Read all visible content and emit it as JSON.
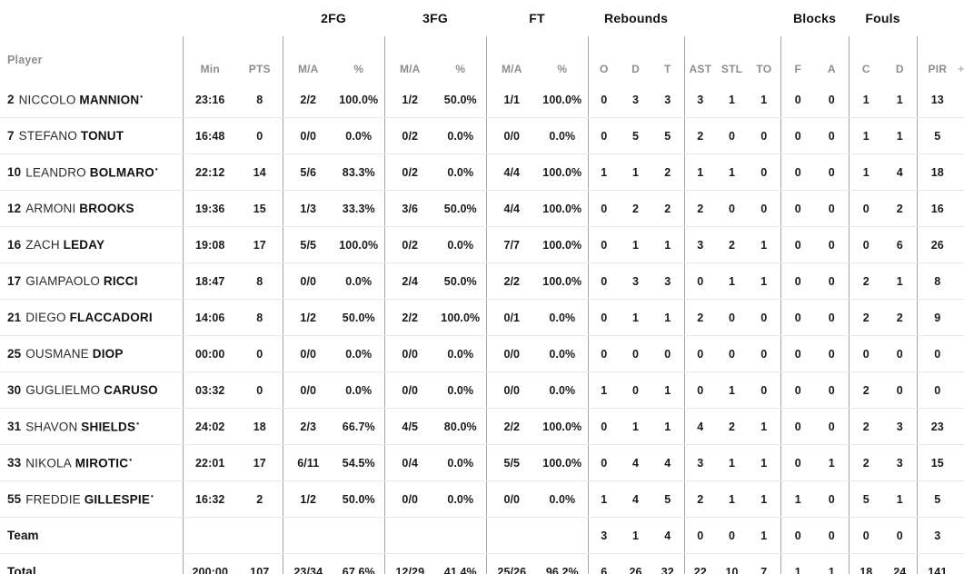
{
  "table": {
    "player_header": "Player",
    "group_headers": {
      "fg2": "2FG",
      "fg3": "3FG",
      "ft": "FT",
      "rebounds": "Rebounds",
      "blocks": "Blocks",
      "fouls": "Fouls"
    },
    "sub_headers": {
      "min": "Min",
      "pts": "PTS",
      "ma": "M/A",
      "pct": "%",
      "reb_o": "O",
      "reb_d": "D",
      "reb_t": "T",
      "ast": "AST",
      "stl": "STL",
      "to": "TO",
      "blk_f": "F",
      "blk_a": "A",
      "foul_c": "C",
      "foul_d": "D",
      "pir": "PIR",
      "plus": "+"
    },
    "starter_mark": "•",
    "rows": [
      {
        "num": "2",
        "first": "NICCOLO",
        "last": "MANNION",
        "starter": true,
        "min": "23:16",
        "pts": "8",
        "fg2_ma": "2/2",
        "fg2_pct": "100.0%",
        "fg3_ma": "1/2",
        "fg3_pct": "50.0%",
        "ft_ma": "1/1",
        "ft_pct": "100.0%",
        "reb_o": "0",
        "reb_d": "3",
        "reb_t": "3",
        "ast": "3",
        "stl": "1",
        "to": "1",
        "blk_f": "0",
        "blk_a": "0",
        "foul_c": "1",
        "foul_d": "1",
        "pir": "13"
      },
      {
        "num": "7",
        "first": "STEFANO",
        "last": "TONUT",
        "starter": false,
        "min": "16:48",
        "pts": "0",
        "fg2_ma": "0/0",
        "fg2_pct": "0.0%",
        "fg3_ma": "0/2",
        "fg3_pct": "0.0%",
        "ft_ma": "0/0",
        "ft_pct": "0.0%",
        "reb_o": "0",
        "reb_d": "5",
        "reb_t": "5",
        "ast": "2",
        "stl": "0",
        "to": "0",
        "blk_f": "0",
        "blk_a": "0",
        "foul_c": "1",
        "foul_d": "1",
        "pir": "5"
      },
      {
        "num": "10",
        "first": "LEANDRO",
        "last": "BOLMARO",
        "starter": true,
        "min": "22:12",
        "pts": "14",
        "fg2_ma": "5/6",
        "fg2_pct": "83.3%",
        "fg3_ma": "0/2",
        "fg3_pct": "0.0%",
        "ft_ma": "4/4",
        "ft_pct": "100.0%",
        "reb_o": "1",
        "reb_d": "1",
        "reb_t": "2",
        "ast": "1",
        "stl": "1",
        "to": "0",
        "blk_f": "0",
        "blk_a": "0",
        "foul_c": "1",
        "foul_d": "4",
        "pir": "18"
      },
      {
        "num": "12",
        "first": "ARMONI",
        "last": "BROOKS",
        "starter": false,
        "min": "19:36",
        "pts": "15",
        "fg2_ma": "1/3",
        "fg2_pct": "33.3%",
        "fg3_ma": "3/6",
        "fg3_pct": "50.0%",
        "ft_ma": "4/4",
        "ft_pct": "100.0%",
        "reb_o": "0",
        "reb_d": "2",
        "reb_t": "2",
        "ast": "2",
        "stl": "0",
        "to": "0",
        "blk_f": "0",
        "blk_a": "0",
        "foul_c": "0",
        "foul_d": "2",
        "pir": "16"
      },
      {
        "num": "16",
        "first": "ZACH",
        "last": "LEDAY",
        "starter": false,
        "min": "19:08",
        "pts": "17",
        "fg2_ma": "5/5",
        "fg2_pct": "100.0%",
        "fg3_ma": "0/2",
        "fg3_pct": "0.0%",
        "ft_ma": "7/7",
        "ft_pct": "100.0%",
        "reb_o": "0",
        "reb_d": "1",
        "reb_t": "1",
        "ast": "3",
        "stl": "2",
        "to": "1",
        "blk_f": "0",
        "blk_a": "0",
        "foul_c": "0",
        "foul_d": "6",
        "pir": "26"
      },
      {
        "num": "17",
        "first": "GIAMPAOLO",
        "last": "RICCI",
        "starter": false,
        "min": "18:47",
        "pts": "8",
        "fg2_ma": "0/0",
        "fg2_pct": "0.0%",
        "fg3_ma": "2/4",
        "fg3_pct": "50.0%",
        "ft_ma": "2/2",
        "ft_pct": "100.0%",
        "reb_o": "0",
        "reb_d": "3",
        "reb_t": "3",
        "ast": "0",
        "stl": "1",
        "to": "1",
        "blk_f": "0",
        "blk_a": "0",
        "foul_c": "2",
        "foul_d": "1",
        "pir": "8"
      },
      {
        "num": "21",
        "first": "DIEGO",
        "last": "FLACCADORI",
        "starter": false,
        "min": "14:06",
        "pts": "8",
        "fg2_ma": "1/2",
        "fg2_pct": "50.0%",
        "fg3_ma": "2/2",
        "fg3_pct": "100.0%",
        "ft_ma": "0/1",
        "ft_pct": "0.0%",
        "reb_o": "0",
        "reb_d": "1",
        "reb_t": "1",
        "ast": "2",
        "stl": "0",
        "to": "0",
        "blk_f": "0",
        "blk_a": "0",
        "foul_c": "2",
        "foul_d": "2",
        "pir": "9"
      },
      {
        "num": "25",
        "first": "OUSMANE",
        "last": "DIOP",
        "starter": false,
        "min": "00:00",
        "pts": "0",
        "fg2_ma": "0/0",
        "fg2_pct": "0.0%",
        "fg3_ma": "0/0",
        "fg3_pct": "0.0%",
        "ft_ma": "0/0",
        "ft_pct": "0.0%",
        "reb_o": "0",
        "reb_d": "0",
        "reb_t": "0",
        "ast": "0",
        "stl": "0",
        "to": "0",
        "blk_f": "0",
        "blk_a": "0",
        "foul_c": "0",
        "foul_d": "0",
        "pir": "0"
      },
      {
        "num": "30",
        "first": "GUGLIELMO",
        "last": "CARUSO",
        "starter": false,
        "min": "03:32",
        "pts": "0",
        "fg2_ma": "0/0",
        "fg2_pct": "0.0%",
        "fg3_ma": "0/0",
        "fg3_pct": "0.0%",
        "ft_ma": "0/0",
        "ft_pct": "0.0%",
        "reb_o": "1",
        "reb_d": "0",
        "reb_t": "1",
        "ast": "0",
        "stl": "1",
        "to": "0",
        "blk_f": "0",
        "blk_a": "0",
        "foul_c": "2",
        "foul_d": "0",
        "pir": "0"
      },
      {
        "num": "31",
        "first": "SHAVON",
        "last": "SHIELDS",
        "starter": true,
        "min": "24:02",
        "pts": "18",
        "fg2_ma": "2/3",
        "fg2_pct": "66.7%",
        "fg3_ma": "4/5",
        "fg3_pct": "80.0%",
        "ft_ma": "2/2",
        "ft_pct": "100.0%",
        "reb_o": "0",
        "reb_d": "1",
        "reb_t": "1",
        "ast": "4",
        "stl": "2",
        "to": "1",
        "blk_f": "0",
        "blk_a": "0",
        "foul_c": "2",
        "foul_d": "3",
        "pir": "23"
      },
      {
        "num": "33",
        "first": "NIKOLA",
        "last": "MIROTIC",
        "starter": true,
        "min": "22:01",
        "pts": "17",
        "fg2_ma": "6/11",
        "fg2_pct": "54.5%",
        "fg3_ma": "0/4",
        "fg3_pct": "0.0%",
        "ft_ma": "5/5",
        "ft_pct": "100.0%",
        "reb_o": "0",
        "reb_d": "4",
        "reb_t": "4",
        "ast": "3",
        "stl": "1",
        "to": "1",
        "blk_f": "0",
        "blk_a": "1",
        "foul_c": "2",
        "foul_d": "3",
        "pir": "15"
      },
      {
        "num": "55",
        "first": "FREDDIE",
        "last": "GILLESPIE",
        "starter": true,
        "min": "16:32",
        "pts": "2",
        "fg2_ma": "1/2",
        "fg2_pct": "50.0%",
        "fg3_ma": "0/0",
        "fg3_pct": "0.0%",
        "ft_ma": "0/0",
        "ft_pct": "0.0%",
        "reb_o": "1",
        "reb_d": "4",
        "reb_t": "5",
        "ast": "2",
        "stl": "1",
        "to": "1",
        "blk_f": "1",
        "blk_a": "0",
        "foul_c": "5",
        "foul_d": "1",
        "pir": "5"
      },
      {
        "label": "Team",
        "min": "",
        "pts": "",
        "fg2_ma": "",
        "fg2_pct": "",
        "fg3_ma": "",
        "fg3_pct": "",
        "ft_ma": "",
        "ft_pct": "",
        "reb_o": "3",
        "reb_d": "1",
        "reb_t": "4",
        "ast": "0",
        "stl": "0",
        "to": "1",
        "blk_f": "0",
        "blk_a": "0",
        "foul_c": "0",
        "foul_d": "0",
        "pir": "3"
      },
      {
        "label": "Total",
        "min": "200:00",
        "pts": "107",
        "fg2_ma": "23/34",
        "fg2_pct": "67.6%",
        "fg3_ma": "12/29",
        "fg3_pct": "41.4%",
        "ft_ma": "25/26",
        "ft_pct": "96.2%",
        "reb_o": "6",
        "reb_d": "26",
        "reb_t": "32",
        "ast": "22",
        "stl": "10",
        "to": "7",
        "blk_f": "1",
        "blk_a": "1",
        "foul_c": "18",
        "foul_d": "24",
        "pir": "141"
      }
    ]
  }
}
